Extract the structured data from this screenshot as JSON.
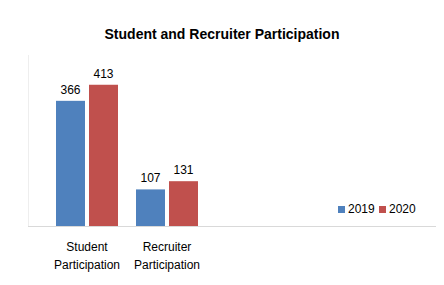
{
  "chart_data": {
    "type": "bar",
    "title": "Student and Recruiter Participation",
    "categories": [
      "Student Participation",
      "Recruiter Participation"
    ],
    "series": [
      {
        "name": "2019",
        "color": "#4f81bd",
        "values": [
          366,
          107
        ]
      },
      {
        "name": "2020",
        "color": "#c0504d",
        "values": [
          413,
          131
        ]
      }
    ],
    "ylim": [
      0,
      500
    ],
    "tick_labels": "x",
    "data_labels": true,
    "legend": "right",
    "grid": false
  }
}
